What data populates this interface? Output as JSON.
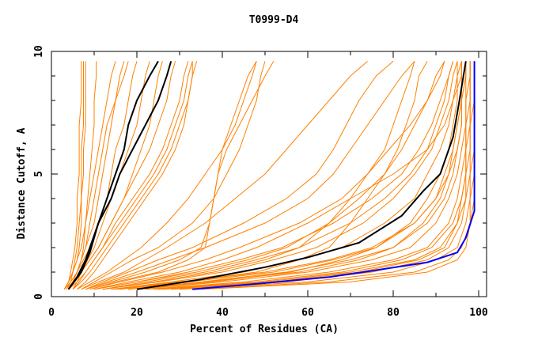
{
  "chart_data": {
    "type": "line",
    "title": "T0999-D4",
    "xlabel": "Percent of Residues (CA)",
    "ylabel": "Distance Cutoff, A",
    "xlim": [
      0,
      100
    ],
    "ylim": [
      0,
      10
    ],
    "x_ticks": [
      "0",
      "20",
      "40",
      "60",
      "80",
      "100"
    ],
    "y_ticks": [
      "0",
      "5",
      "10"
    ],
    "grid": false,
    "colors": {
      "models": "#ff8000",
      "highlight": "#000000",
      "best": "#0000ff"
    },
    "y_levels": [
      0.3,
      0.6,
      1,
      1.5,
      2,
      3,
      4,
      5,
      6,
      7,
      8,
      9,
      9.6
    ],
    "model_series_x": [
      [
        3,
        4,
        4.5,
        5,
        5.5,
        6,
        6,
        6.5,
        6.5,
        6.5,
        7,
        7,
        7
      ],
      [
        3,
        4,
        5,
        5.5,
        6,
        6.5,
        7,
        7,
        7,
        7.5,
        7.5,
        7.5,
        7.5
      ],
      [
        3.5,
        4.5,
        5,
        6,
        6.5,
        7,
        7,
        7.5,
        7.5,
        8,
        8,
        8,
        8
      ],
      [
        4,
        5,
        6,
        7,
        7.5,
        8,
        8.5,
        9,
        9.5,
        10,
        10,
        10.5,
        10.5
      ],
      [
        3,
        4,
        5,
        6,
        7,
        8,
        9,
        10,
        11,
        12,
        13,
        14,
        15
      ],
      [
        3.5,
        5,
        6,
        7,
        8,
        10,
        11,
        12,
        13,
        14,
        15,
        16,
        17
      ],
      [
        4,
        5,
        6,
        7.5,
        9,
        11,
        13,
        14,
        15,
        17,
        18,
        19,
        20
      ],
      [
        3,
        4.5,
        6,
        7,
        8,
        9,
        10,
        11,
        12,
        13,
        15,
        17,
        18
      ],
      [
        4,
        5.5,
        7,
        8.5,
        10,
        12,
        14,
        16,
        18,
        20,
        21,
        22,
        23
      ],
      [
        5,
        6,
        7,
        9,
        11,
        14,
        17,
        19,
        21,
        23,
        24,
        25,
        26
      ],
      [
        4,
        5,
        7,
        9,
        11,
        14,
        17,
        20,
        23,
        25,
        27,
        28,
        29
      ],
      [
        5,
        6.5,
        8,
        10,
        12,
        15,
        19,
        23,
        26,
        28,
        30,
        31,
        32
      ],
      [
        5,
        7,
        9,
        11,
        13,
        17,
        21,
        25,
        28,
        30,
        32,
        33,
        34
      ],
      [
        4,
        6,
        8,
        10,
        12,
        16,
        20,
        24,
        27,
        29,
        31,
        32,
        33
      ],
      [
        6,
        8,
        10,
        12,
        14,
        18,
        22,
        26,
        29,
        31,
        32,
        33,
        33
      ],
      [
        6,
        9,
        13,
        17,
        21,
        27,
        32,
        36,
        40,
        43,
        45,
        47,
        48
      ],
      [
        7,
        10,
        14,
        19,
        25,
        33,
        38,
        41,
        44,
        46,
        48,
        49,
        50
      ],
      [
        8,
        12,
        18,
        25,
        33,
        45,
        55,
        62,
        66,
        69,
        72,
        76,
        80
      ],
      [
        7,
        11,
        17,
        22,
        27,
        36,
        43,
        50,
        55,
        60,
        65,
        70,
        74
      ],
      [
        8,
        14,
        22,
        30,
        35,
        37,
        38,
        39,
        41,
        44,
        47,
        50,
        52
      ],
      [
        9,
        15,
        25,
        32,
        36,
        37,
        38,
        39,
        40,
        42,
        44,
        46,
        48
      ],
      [
        10,
        18,
        30,
        40,
        48,
        60,
        70,
        80,
        88,
        92,
        94,
        96,
        96
      ],
      [
        9,
        16,
        26,
        36,
        44,
        58,
        68,
        74,
        79,
        84,
        88,
        90,
        92
      ],
      [
        8,
        13,
        20,
        28,
        36,
        50,
        60,
        66,
        70,
        74,
        78,
        82,
        85
      ],
      [
        10,
        20,
        34,
        46,
        55,
        65,
        72,
        78,
        82,
        85,
        88,
        91,
        92
      ],
      [
        15,
        30,
        50,
        65,
        75,
        85,
        90,
        93,
        95,
        96,
        96,
        97,
        97
      ],
      [
        18,
        35,
        55,
        70,
        80,
        88,
        92,
        94,
        95,
        96,
        96,
        97,
        97
      ],
      [
        20,
        40,
        60,
        75,
        84,
        90,
        93,
        95,
        96,
        97,
        97,
        98,
        98
      ],
      [
        22,
        45,
        65,
        80,
        88,
        93,
        95,
        96,
        97,
        97,
        98,
        98,
        98
      ],
      [
        25,
        50,
        70,
        85,
        91,
        95,
        96,
        97,
        97,
        98,
        98,
        98,
        98
      ],
      [
        28,
        55,
        75,
        88,
        93,
        96,
        97,
        98,
        98,
        98,
        99,
        99,
        99
      ],
      [
        30,
        60,
        80,
        90,
        95,
        97,
        98,
        98,
        99,
        99,
        99,
        99,
        99
      ],
      [
        33,
        65,
        85,
        93,
        96,
        98,
        98,
        99,
        99,
        99,
        99,
        99,
        99
      ],
      [
        35,
        70,
        88,
        95,
        97,
        98,
        99,
        99,
        99,
        99,
        99,
        99,
        99
      ],
      [
        14,
        28,
        45,
        58,
        68,
        78,
        85,
        88,
        91,
        93,
        94,
        95,
        96
      ],
      [
        12,
        25,
        40,
        52,
        62,
        73,
        80,
        85,
        89,
        91,
        93,
        94,
        95
      ],
      [
        12,
        22,
        36,
        48,
        58,
        70,
        78,
        84,
        88,
        90,
        92,
        93,
        94
      ],
      [
        10,
        20,
        32,
        44,
        54,
        66,
        75,
        82,
        86,
        89,
        91,
        93,
        94
      ],
      [
        16,
        32,
        52,
        66,
        76,
        85,
        90,
        92,
        94,
        95,
        96,
        96,
        96
      ],
      [
        20,
        38,
        56,
        68,
        76,
        84,
        88,
        91,
        93,
        94,
        95,
        95,
        95
      ],
      [
        18,
        36,
        58,
        72,
        80,
        87,
        91,
        93,
        94,
        95,
        96,
        96,
        96
      ],
      [
        24,
        48,
        68,
        82,
        89,
        94,
        96,
        97,
        97,
        97,
        97,
        97,
        97
      ],
      [
        12,
        24,
        38,
        50,
        58,
        65,
        70,
        74,
        78,
        80,
        82,
        84,
        85
      ],
      [
        14,
        30,
        48,
        58,
        65,
        70,
        74,
        78,
        81,
        83,
        85,
        86,
        88
      ],
      [
        26,
        52,
        72,
        86,
        92,
        95,
        97,
        97,
        98,
        98,
        98,
        98,
        98
      ]
    ],
    "highlight_series": [
      {
        "color": "#000000",
        "x": [
          4,
          6,
          8,
          10,
          12,
          15,
          17,
          18,
          20,
          23,
          25
        ],
        "y": [
          0.3,
          0.8,
          1.5,
          2.5,
          3.5,
          5,
          6,
          7,
          8,
          9,
          9.6
        ]
      },
      {
        "color": "#000000",
        "x": [
          4,
          7,
          9,
          11,
          14,
          16,
          19,
          22,
          25,
          27,
          28
        ],
        "y": [
          0.3,
          1,
          1.8,
          3,
          4,
          5,
          6,
          7,
          8,
          9,
          9.6
        ]
      },
      {
        "color": "#000000",
        "x": [
          20,
          35,
          50,
          60,
          72,
          82,
          87,
          91,
          94,
          95.5,
          97
        ],
        "y": [
          0.3,
          0.7,
          1.2,
          1.6,
          2.2,
          3.3,
          4.3,
          5,
          6.5,
          8,
          9.6
        ]
      },
      {
        "color": "#0000ff",
        "x": [
          33,
          50,
          65,
          75,
          88,
          95,
          97,
          99,
          99
        ],
        "y": [
          0.3,
          0.55,
          0.8,
          1.05,
          1.4,
          1.8,
          2.4,
          3.5,
          9.6
        ]
      }
    ]
  }
}
